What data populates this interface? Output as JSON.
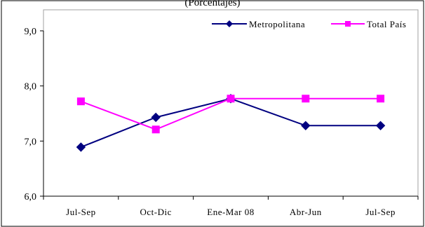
{
  "chart_data": {
    "type": "line",
    "title": "(Porcentajes)",
    "categories": [
      "Jul-Sep",
      "Oct-Dic",
      "Ene-Mar 08",
      "Abr-Jun",
      "Jul-Sep"
    ],
    "y_tick_labels": [
      "6,0",
      "7,0",
      "8,0",
      "9,0"
    ],
    "ylim": [
      6,
      9
    ],
    "grid": false,
    "legend_position": "top-right",
    "series": [
      {
        "name": "Metropolitana",
        "color": "#000080",
        "marker": "diamond",
        "values": [
          6.89,
          7.43,
          7.77,
          7.28,
          7.28
        ]
      },
      {
        "name": "Total País",
        "color": "#ff00ff",
        "marker": "square",
        "values": [
          7.72,
          7.21,
          7.77,
          7.77,
          7.77
        ]
      }
    ]
  }
}
